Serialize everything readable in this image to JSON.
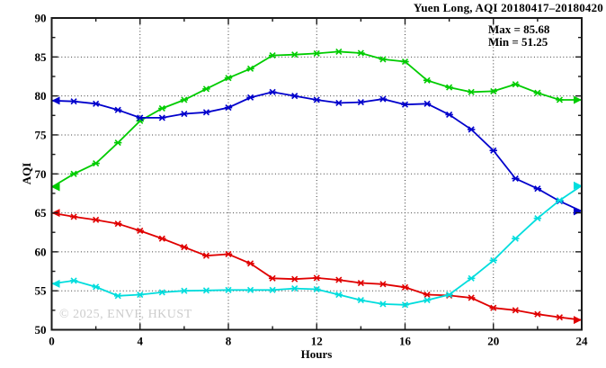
{
  "chart_data": {
    "type": "line",
    "title": "Yuen Long, AQI 20180417–20180420",
    "xlabel": "Hours",
    "ylabel": "AQI",
    "xlim": [
      0,
      24
    ],
    "ylim": [
      50,
      90
    ],
    "xticks": [
      0,
      4,
      8,
      12,
      16,
      20,
      24
    ],
    "yticks": [
      50,
      55,
      60,
      65,
      70,
      75,
      80,
      85,
      90
    ],
    "x_minor_step": 2,
    "y_minor_step": 2.5,
    "grid": "dotted-at-major-ticks",
    "legend_position": "none",
    "annotation": {
      "max_label": "Max = 85.68",
      "min_label": "Min = 51.25"
    },
    "watermark": "© 2025, ENVF, HKUST",
    "axis_color": "#1a1a1a",
    "grid_color": "#3c3c3c",
    "x": [
      0,
      1,
      2,
      3,
      4,
      5,
      6,
      7,
      8,
      9,
      10,
      11,
      12,
      13,
      14,
      15,
      16,
      17,
      18,
      19,
      20,
      21,
      22,
      23,
      24
    ],
    "series": [
      {
        "name": "green-line",
        "color": "#00CC00",
        "values": [
          68.3,
          70.0,
          71.35,
          74.0,
          76.8,
          78.4,
          79.5,
          80.9,
          82.3,
          83.5,
          85.2,
          85.3,
          85.45,
          85.68,
          85.5,
          84.7,
          84.4,
          82.0,
          81.1,
          80.5,
          80.6,
          81.5,
          80.4,
          79.5,
          79.5
        ]
      },
      {
        "name": "blue-line",
        "color": "#0000CC",
        "values": [
          79.4,
          79.3,
          79.0,
          78.2,
          77.2,
          77.2,
          77.7,
          77.9,
          78.5,
          79.8,
          80.5,
          80.0,
          79.5,
          79.1,
          79.2,
          79.6,
          78.9,
          79.0,
          77.6,
          75.7,
          73.0,
          69.4,
          68.1,
          66.5,
          65.2
        ]
      },
      {
        "name": "red-line",
        "color": "#E00000",
        "values": [
          65.0,
          64.5,
          64.1,
          63.6,
          62.7,
          61.7,
          60.6,
          59.5,
          59.7,
          58.5,
          56.6,
          56.5,
          56.65,
          56.4,
          56.0,
          55.85,
          55.45,
          54.5,
          54.4,
          54.1,
          52.8,
          52.5,
          52.0,
          51.6,
          51.25
        ]
      },
      {
        "name": "cyan-line",
        "color": "#00DDDD",
        "values": [
          55.9,
          56.3,
          55.5,
          54.35,
          54.5,
          54.8,
          55.0,
          55.05,
          55.1,
          55.1,
          55.1,
          55.3,
          55.2,
          54.5,
          53.8,
          53.3,
          53.2,
          53.8,
          54.5,
          56.6,
          58.9,
          61.7,
          64.3,
          66.6,
          68.5
        ]
      }
    ]
  }
}
